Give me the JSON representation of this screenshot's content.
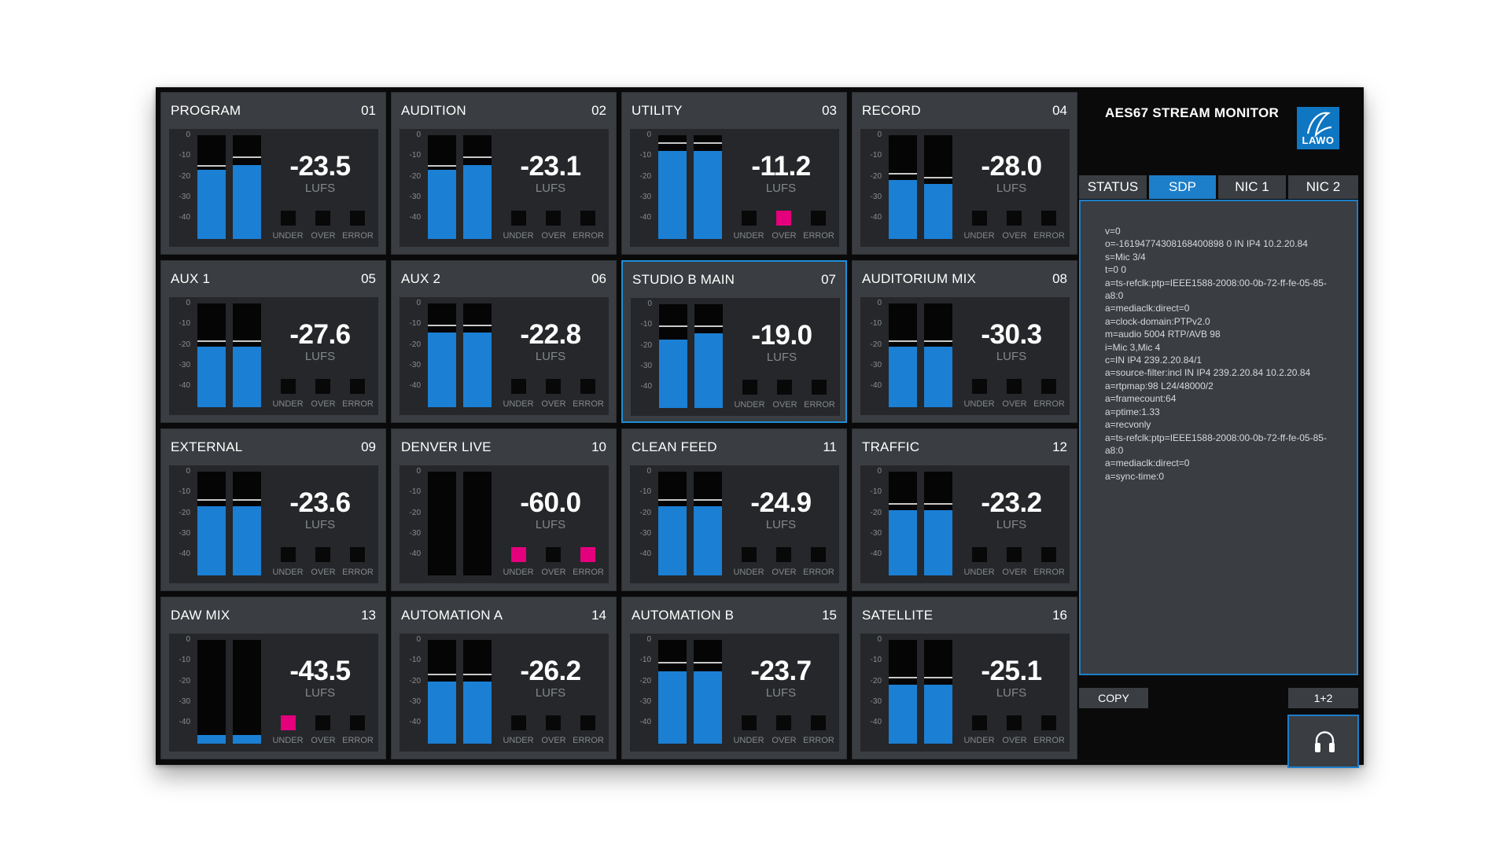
{
  "app": {
    "title": "AES67 STREAM MONITOR",
    "logo_text": "LAWO"
  },
  "scale_labels": [
    "0",
    "-10",
    "-20",
    "-30",
    "-40"
  ],
  "indicator_labels": [
    "UNDER",
    "OVER",
    "ERROR"
  ],
  "colors": {
    "accent": "#1d7ec9",
    "meter_fill": "#1b7fd4",
    "alarm": "#e4007c"
  },
  "tiles": [
    {
      "name": "PROGRAM",
      "num": "01",
      "value": "-23.5",
      "unit": "LUFS",
      "left_level": 0.67,
      "right_level": 0.71,
      "left_peak": 0.7,
      "right_peak": 0.78,
      "under": false,
      "over": false,
      "error": false,
      "selected": false
    },
    {
      "name": "AUDITION",
      "num": "02",
      "value": "-23.1",
      "unit": "LUFS",
      "left_level": 0.67,
      "right_level": 0.71,
      "left_peak": 0.7,
      "right_peak": 0.78,
      "under": false,
      "over": false,
      "error": false,
      "selected": false
    },
    {
      "name": "UTILITY",
      "num": "03",
      "value": "-11.2",
      "unit": "LUFS",
      "left_level": 0.85,
      "right_level": 0.85,
      "left_peak": 0.92,
      "right_peak": 0.92,
      "under": false,
      "over": true,
      "error": false,
      "selected": false
    },
    {
      "name": "RECORD",
      "num": "04",
      "value": "-28.0",
      "unit": "LUFS",
      "left_level": 0.57,
      "right_level": 0.53,
      "left_peak": 0.62,
      "right_peak": 0.58,
      "under": false,
      "over": false,
      "error": false,
      "selected": false
    },
    {
      "name": "AUX 1",
      "num": "05",
      "value": "-27.6",
      "unit": "LUFS",
      "left_level": 0.58,
      "right_level": 0.58,
      "left_peak": 0.63,
      "right_peak": 0.63,
      "under": false,
      "over": false,
      "error": false,
      "selected": false
    },
    {
      "name": "AUX 2",
      "num": "06",
      "value": "-22.8",
      "unit": "LUFS",
      "left_level": 0.72,
      "right_level": 0.72,
      "left_peak": 0.78,
      "right_peak": 0.78,
      "under": false,
      "over": false,
      "error": false,
      "selected": false
    },
    {
      "name": "STUDIO B MAIN",
      "num": "07",
      "value": "-19.0",
      "unit": "LUFS",
      "left_level": 0.66,
      "right_level": 0.72,
      "left_peak": 0.78,
      "right_peak": 0.78,
      "under": false,
      "over": false,
      "error": false,
      "selected": true
    },
    {
      "name": "AUDITORIUM MIX",
      "num": "08",
      "value": "-30.3",
      "unit": "LUFS",
      "left_level": 0.58,
      "right_level": 0.58,
      "left_peak": 0.63,
      "right_peak": 0.63,
      "under": false,
      "over": false,
      "error": false,
      "selected": false
    },
    {
      "name": "EXTERNAL",
      "num": "09",
      "value": "-23.6",
      "unit": "LUFS",
      "left_level": 0.67,
      "right_level": 0.67,
      "left_peak": 0.72,
      "right_peak": 0.72,
      "under": false,
      "over": false,
      "error": false,
      "selected": false
    },
    {
      "name": "DENVER LIVE",
      "num": "10",
      "value": "-60.0",
      "unit": "LUFS",
      "left_level": 0.0,
      "right_level": 0.0,
      "left_peak": 0.0,
      "right_peak": 0.0,
      "under": true,
      "over": false,
      "error": true,
      "selected": false
    },
    {
      "name": "CLEAN FEED",
      "num": "11",
      "value": "-24.9",
      "unit": "LUFS",
      "left_level": 0.67,
      "right_level": 0.67,
      "left_peak": 0.72,
      "right_peak": 0.72,
      "under": false,
      "over": false,
      "error": false,
      "selected": false
    },
    {
      "name": "TRAFFIC",
      "num": "12",
      "value": "-23.2",
      "unit": "LUFS",
      "left_level": 0.63,
      "right_level": 0.63,
      "left_peak": 0.68,
      "right_peak": 0.68,
      "under": false,
      "over": false,
      "error": false,
      "selected": false
    },
    {
      "name": "DAW MIX",
      "num": "13",
      "value": "-43.5",
      "unit": "LUFS",
      "left_level": 0.08,
      "right_level": 0.08,
      "left_peak": 0.0,
      "right_peak": 0.0,
      "under": true,
      "over": false,
      "error": false,
      "selected": false
    },
    {
      "name": "AUTOMATION A",
      "num": "14",
      "value": "-26.2",
      "unit": "LUFS",
      "left_level": 0.6,
      "right_level": 0.6,
      "left_peak": 0.66,
      "right_peak": 0.66,
      "under": false,
      "over": false,
      "error": false,
      "selected": false
    },
    {
      "name": "AUTOMATION B",
      "num": "15",
      "value": "-23.7",
      "unit": "LUFS",
      "left_level": 0.7,
      "right_level": 0.7,
      "left_peak": 0.77,
      "right_peak": 0.77,
      "under": false,
      "over": false,
      "error": false,
      "selected": false
    },
    {
      "name": "SATELLITE",
      "num": "16",
      "value": "-25.1",
      "unit": "LUFS",
      "left_level": 0.57,
      "right_level": 0.57,
      "left_peak": 0.63,
      "right_peak": 0.63,
      "under": false,
      "over": false,
      "error": false,
      "selected": false
    }
  ],
  "tabs": [
    {
      "label": "STATUS",
      "active": false
    },
    {
      "label": "SDP",
      "active": true
    },
    {
      "label": "NIC 1",
      "active": false
    },
    {
      "label": "NIC 2",
      "active": false
    }
  ],
  "sdp_lines": [
    "v=0",
    "o=-16194774308168400898 0 IN IP4 10.2.20.84",
    "s=Mic 3/4",
    "t=0 0",
    "a=ts-refclk:ptp=IEEE1588-2008:00-0b-72-ff-fe-05-85-",
    "a8:0",
    "a=mediaclk:direct=0",
    "a=clock-domain:PTPv2.0",
    "m=audio 5004 RTP/AVB 98",
    "i=Mic 3,Mic 4",
    "c=IN IP4 239.2.20.84/1",
    "a=source-filter:incl IN IP4 239.2.20.84 10.2.20.84",
    "a=rtpmap:98 L24/48000/2",
    "a=framecount:64",
    "a=ptime:1.33",
    "a=recvonly",
    "a=ts-refclk:ptp=IEEE1588-2008:00-0b-72-ff-fe-05-85-",
    "a8:0",
    "a=mediaclk:direct=0",
    "a=sync-time:0"
  ],
  "buttons": {
    "copy": "COPY",
    "channels": "1+2"
  }
}
